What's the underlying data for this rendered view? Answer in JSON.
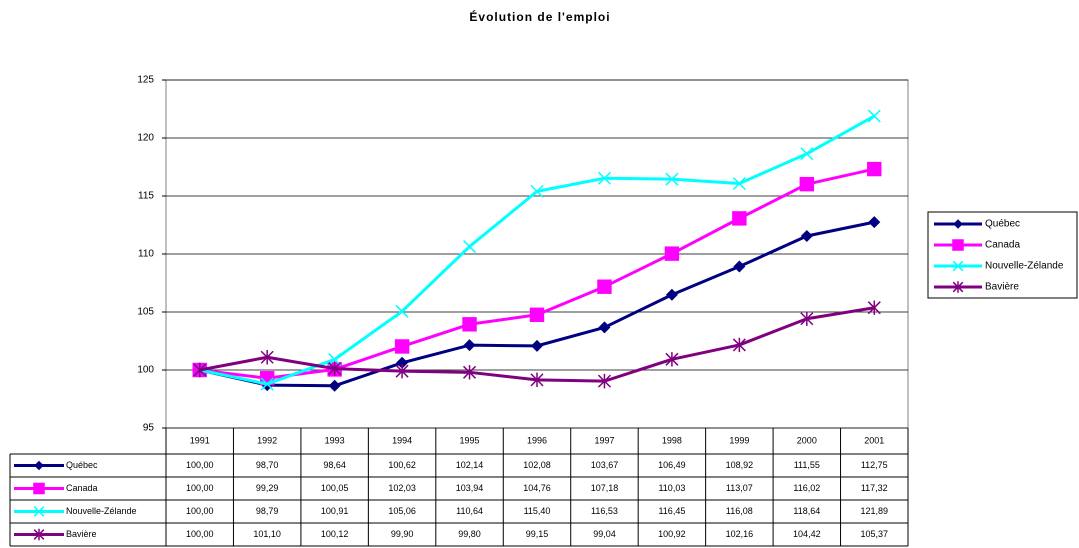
{
  "chart_data": {
    "type": "line",
    "title": "Évolution de l'emploi",
    "categories": [
      "1991",
      "1992",
      "1993",
      "1994",
      "1995",
      "1996",
      "1997",
      "1998",
      "1999",
      "2000",
      "2001"
    ],
    "ylim": [
      95,
      125
    ],
    "yticks": [
      95,
      100,
      105,
      110,
      115,
      120,
      125
    ],
    "grid": true,
    "legend": "right",
    "series": [
      {
        "name": "Québec",
        "color": "#000080",
        "marker": "diamond",
        "values": [
          100.0,
          98.7,
          98.64,
          100.62,
          102.14,
          102.08,
          103.67,
          106.49,
          108.92,
          111.55,
          112.75
        ],
        "value_labels": [
          "100,00",
          "98,70",
          "98,64",
          "100,62",
          "102,14",
          "102,08",
          "103,67",
          "106,49",
          "108,92",
          "111,55",
          "112,75"
        ]
      },
      {
        "name": "Canada",
        "color": "#ff00ff",
        "marker": "square",
        "values": [
          100.0,
          99.29,
          100.05,
          102.03,
          103.94,
          104.76,
          107.18,
          110.03,
          113.07,
          116.02,
          117.32
        ],
        "value_labels": [
          "100,00",
          "99,29",
          "100,05",
          "102,03",
          "103,94",
          "104,76",
          "107,18",
          "110,03",
          "113,07",
          "116,02",
          "117,32"
        ]
      },
      {
        "name": "Nouvelle-Zélande",
        "color": "#00ffff",
        "marker": "x",
        "values": [
          100.0,
          98.79,
          100.91,
          105.06,
          110.64,
          115.4,
          116.53,
          116.45,
          116.08,
          118.64,
          121.89
        ],
        "value_labels": [
          "100,00",
          "98,79",
          "100,91",
          "105,06",
          "110,64",
          "115,40",
          "116,53",
          "116,45",
          "116,08",
          "118,64",
          "121,89"
        ]
      },
      {
        "name": "Bavière",
        "color": "#800080",
        "marker": "star",
        "values": [
          100.0,
          101.1,
          100.12,
          99.9,
          99.8,
          99.15,
          99.04,
          100.92,
          102.16,
          104.42,
          105.37
        ],
        "value_labels": [
          "100,00",
          "101,10",
          "100,12",
          "99,90",
          "99,80",
          "99,15",
          "99,04",
          "100,92",
          "102,16",
          "104,42",
          "105,37"
        ]
      }
    ]
  }
}
